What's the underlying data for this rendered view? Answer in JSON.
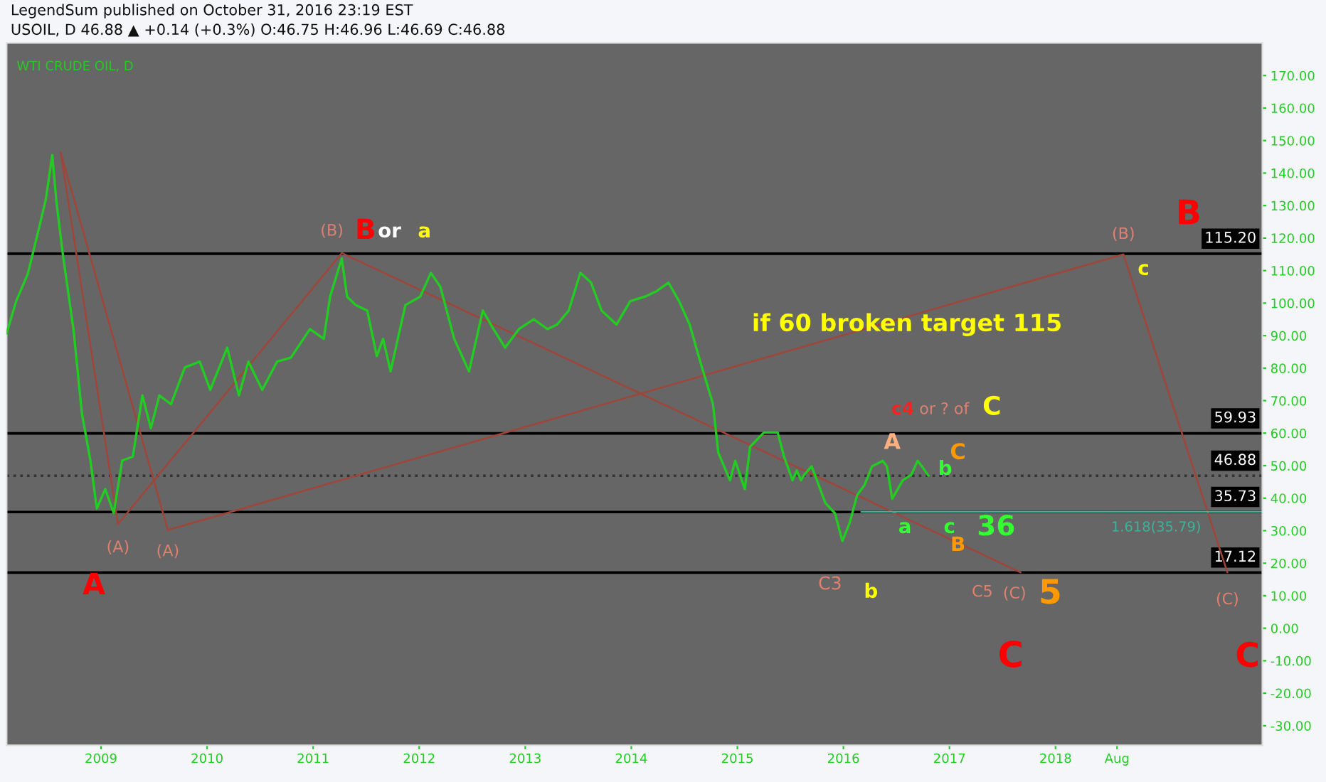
{
  "chart_data": {
    "type": "line",
    "title": "WTI CRUDE OIL, D",
    "x": [
      2008.11,
      2008.2,
      2008.31,
      2008.42,
      2008.48,
      2008.54,
      2008.58,
      2008.64,
      2008.74,
      2008.82,
      2008.9,
      2008.96,
      2009.04,
      2009.12,
      2009.2,
      2009.3,
      2009.39,
      2009.47,
      2009.55,
      2009.66,
      2009.79,
      2009.93,
      2010.03,
      2010.19,
      2010.3,
      2010.39,
      2010.52,
      2010.66,
      2010.79,
      2010.97,
      2011.1,
      2011.16,
      2011.27,
      2011.32,
      2011.4,
      2011.51,
      2011.6,
      2011.66,
      2011.73,
      2011.87,
      2012.01,
      2012.11,
      2012.2,
      2012.33,
      2012.47,
      2012.6,
      2012.7,
      2012.81,
      2012.94,
      2013.08,
      2013.21,
      2013.3,
      2013.41,
      2013.52,
      2013.62,
      2013.72,
      2013.86,
      2013.99,
      2014.13,
      2014.24,
      2014.35,
      2014.45,
      2014.55,
      2014.65,
      2014.77,
      2014.82,
      2014.93,
      2014.98,
      2015.07,
      2015.12,
      2015.25,
      2015.38,
      2015.44,
      2015.52,
      2015.56,
      2015.6,
      2015.63,
      2015.7,
      2015.75,
      2015.83,
      2015.92,
      2015.99,
      2016.06,
      2016.13,
      2016.2,
      2016.27,
      2016.37,
      2016.41,
      2016.46,
      2016.56,
      2016.64,
      2016.7,
      2016.74,
      2016.8
    ],
    "values": [
      90.7,
      100.6,
      109,
      123.7,
      132,
      145.5,
      131,
      115,
      92,
      66,
      51.6,
      36.8,
      42.8,
      35.4,
      51.6,
      52.8,
      71.6,
      61.5,
      71.6,
      68.9,
      80.2,
      82,
      73.3,
      86.3,
      71.6,
      82,
      73.3,
      82,
      83.2,
      92,
      89,
      102,
      113.7,
      102,
      99.4,
      97.7,
      83.7,
      89,
      79,
      99.4,
      102,
      109.3,
      105,
      89,
      79,
      97.7,
      92,
      86.3,
      92,
      95,
      92,
      93.4,
      97.7,
      109.3,
      106.3,
      97.7,
      93.4,
      100.6,
      102,
      103.7,
      106.3,
      100.6,
      93.4,
      82,
      69,
      54,
      45.5,
      51.5,
      42.8,
      55.8,
      60.2,
      60.2,
      52.8,
      45.5,
      48.5,
      45.5,
      47.2,
      49.8,
      45.5,
      38.5,
      35.4,
      26.8,
      32.5,
      41,
      44.1,
      49.8,
      51.5,
      49.8,
      39.8,
      45.5,
      47.2,
      51.5,
      49.8,
      47
    ],
    "color": "#22cc22",
    "series": [
      {
        "type": "line",
        "color": "#a0453a",
        "x": [
          2008.62,
          2009.16,
          2011.27,
          2017.67
        ],
        "values": [
          146.3,
          32.0,
          115.4,
          17.2
        ]
      },
      {
        "type": "line",
        "color": "#a0453a",
        "x": [
          2008.62,
          2009.63,
          2018.64,
          2019.62
        ],
        "values": [
          146.3,
          30.2,
          115.0,
          17.2
        ]
      },
      {
        "type": "line",
        "color": "#3cb39a",
        "x": [
          2016.17,
          2019.95
        ],
        "values": [
          35.79,
          35.79
        ]
      }
    ],
    "ref_lines": [
      {
        "axis": "y",
        "value": 115.2,
        "label": "115.20",
        "color": "#000000"
      },
      {
        "axis": "y",
        "value": 59.93,
        "label": "59.93",
        "color": "#000000"
      },
      {
        "axis": "y",
        "value": 46.88,
        "label": "46.88",
        "color": "#333333",
        "line_style": "dotted"
      },
      {
        "axis": "y",
        "value": 35.73,
        "label": "35.73",
        "color": "#000000"
      },
      {
        "axis": "y",
        "value": 17.12,
        "label": "17.12",
        "color": "#000000"
      }
    ],
    "xlim": [
      2008.11,
      2019.95
    ],
    "ylim": [
      -36,
      180
    ],
    "xticks": [
      2009,
      2010,
      2011,
      2012,
      2013,
      2014,
      2015,
      2016,
      2017,
      2018,
      {
        "value": 2018.58,
        "label": "Aug"
      }
    ],
    "yticks": [
      {
        "value": -30,
        "label": "-30.00"
      },
      {
        "value": -20,
        "label": "-20.00"
      },
      {
        "value": -10,
        "label": "-10.00"
      },
      {
        "value": 0,
        "label": "0.00"
      },
      {
        "value": 10,
        "label": "10.00"
      },
      {
        "value": 20,
        "label": "20.00"
      },
      {
        "value": 30,
        "label": "30.00"
      },
      {
        "value": 40,
        "label": "40.00"
      },
      {
        "value": 50,
        "label": "50.00"
      },
      {
        "value": 60,
        "label": "60.00"
      },
      {
        "value": 70,
        "label": "70.00"
      },
      {
        "value": 80,
        "label": "80.00"
      },
      {
        "value": 90,
        "label": "90.00"
      },
      {
        "value": 100,
        "label": "100.00"
      },
      {
        "value": 110,
        "label": "110.00"
      },
      {
        "value": 120,
        "label": "120.00"
      },
      {
        "value": 130,
        "label": "130.00"
      },
      {
        "value": 140,
        "label": "140.00"
      },
      {
        "value": 150,
        "label": "150.00"
      },
      {
        "value": 160,
        "label": "160.00"
      },
      {
        "value": 170,
        "label": "170.00"
      }
    ],
    "grid": false,
    "legend": false,
    "marker": "none",
    "line_style": "solid",
    "annotations": [
      "LegendSum published on October 31, 2016 23:19 EST",
      "USOIL, D 46.88 ▲ +0.14 (+0.3%) O:46.75 H:46.96 L:46.69 C:46.88",
      {
        "text": "1.618(35.79)",
        "x": 2019.0,
        "y": 35.79
      },
      {
        "text": "A",
        "x": 2009.12,
        "y": 35.4
      },
      {
        "text": "(A)",
        "x": 2009.16,
        "y": 32.0
      },
      {
        "text": "(A)",
        "x": 2009.63,
        "y": 30.2
      },
      {
        "text": "(B)",
        "x": 2011.27,
        "y": 115.4
      },
      {
        "text": "B",
        "x": 2011.27,
        "y": 115.4
      },
      {
        "text": "or",
        "x": 2011.72,
        "y": 115.2
      },
      {
        "text": "a",
        "x": 2012.05,
        "y": 115.2
      },
      {
        "text": "if 60 broken target 115",
        "x": 2016.6,
        "y": 95.8
      },
      {
        "text": "c4",
        "x": 2016.56,
        "y": 59.93
      },
      {
        "text": "or ? of",
        "x": 2016.95,
        "y": 59.93
      },
      {
        "text": "C",
        "x": 2017.4,
        "y": 59.93
      },
      {
        "text": "A",
        "x": 2016.46,
        "y": 51.5
      },
      {
        "text": "C",
        "x": 2017.08,
        "y": 59.93
      },
      {
        "text": "b",
        "x": 2016.8,
        "y": 47
      },
      {
        "text": "a",
        "x": 2016.58,
        "y": 35.79
      },
      {
        "text": "c",
        "x": 2017.0,
        "y": 35.79
      },
      {
        "text": "B",
        "x": 2017.08,
        "y": 35.79
      },
      {
        "text": "36",
        "x": 2017.44,
        "y": 35.79
      },
      {
        "text": "C3",
        "x": 2016.06,
        "y": 26.8
      },
      {
        "text": "b",
        "x": 2016.26,
        "y": 17.12
      },
      {
        "text": "C5",
        "x": 2017.31,
        "y": 17.12
      },
      {
        "text": "(C)",
        "x": 2017.67,
        "y": 17.2
      },
      {
        "text": "5",
        "x": 2017.95,
        "y": 17.12
      },
      {
        "text": "C",
        "x": 2017.67,
        "y": 17.2
      },
      {
        "text": "B",
        "x": 2018.64,
        "y": 115.0
      },
      {
        "text": "(B)",
        "x": 2018.64,
        "y": 115.0
      },
      {
        "text": "c",
        "x": 2018.83,
        "y": 115.2
      },
      {
        "text": "(C)",
        "x": 2019.62,
        "y": 17.2
      },
      "C"
    ]
  }
}
